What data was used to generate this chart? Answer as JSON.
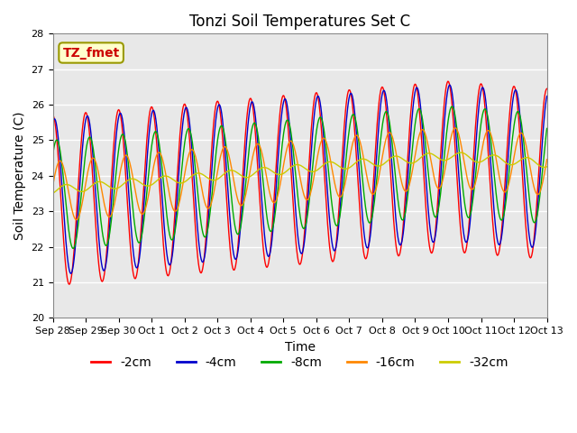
{
  "title": "Tonzi Soil Temperatures Set C",
  "xlabel": "Time",
  "ylabel": "Soil Temperature (C)",
  "ylim": [
    20.0,
    28.0
  ],
  "yticks": [
    20.0,
    21.0,
    22.0,
    23.0,
    24.0,
    25.0,
    26.0,
    27.0,
    28.0
  ],
  "xtick_labels": [
    "Sep 28",
    "Sep 29",
    "Sep 30",
    "Oct 1",
    "Oct 2",
    "Oct 3",
    "Oct 4",
    "Oct 5",
    "Oct 6",
    "Oct 7",
    "Oct 8",
    "Oct 9",
    "Oct 10",
    "Oct 11",
    "Oct 12",
    "Oct 13"
  ],
  "annotation_text": "TZ_fmet",
  "annotation_color": "#cc0000",
  "annotation_bg": "#ffffcc",
  "annotation_border": "#999900",
  "legend_entries": [
    "-2cm",
    "-4cm",
    "-8cm",
    "-16cm",
    "-32cm"
  ],
  "line_colors": [
    "#ff0000",
    "#0000cc",
    "#00aa00",
    "#ff8800",
    "#cccc00"
  ],
  "background_color": "#e8e8e8",
  "fig_background": "#ffffff",
  "grid_color": "#ffffff",
  "title_fontsize": 12,
  "axis_fontsize": 10,
  "legend_fontsize": 10
}
